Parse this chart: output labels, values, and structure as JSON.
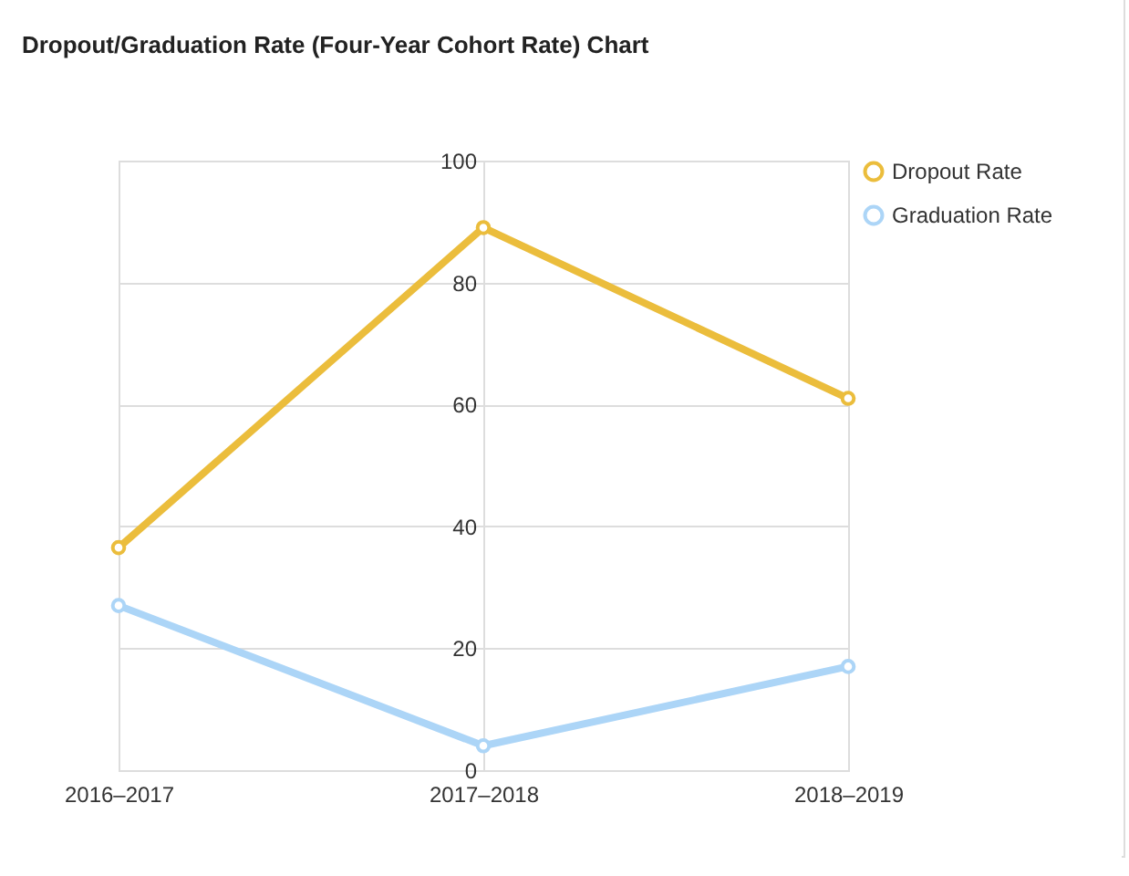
{
  "chart_data": {
    "type": "line",
    "title": "Dropout/Graduation Rate (Four-Year Cohort Rate) Chart",
    "categories": [
      "2016–2017",
      "2017–2018",
      "2018–2019"
    ],
    "series": [
      {
        "name": "Dropout Rate",
        "color": "#ebbd3c",
        "values": [
          36.5,
          89,
          61
        ]
      },
      {
        "name": "Graduation Rate",
        "color": "#acd5f7",
        "values": [
          27,
          4,
          17
        ]
      }
    ],
    "ylim": [
      0,
      100
    ],
    "yticks": [
      0,
      20,
      40,
      60,
      80,
      100
    ],
    "grid": true,
    "legend": "top right",
    "marker": "circle",
    "line_style": "solid"
  }
}
